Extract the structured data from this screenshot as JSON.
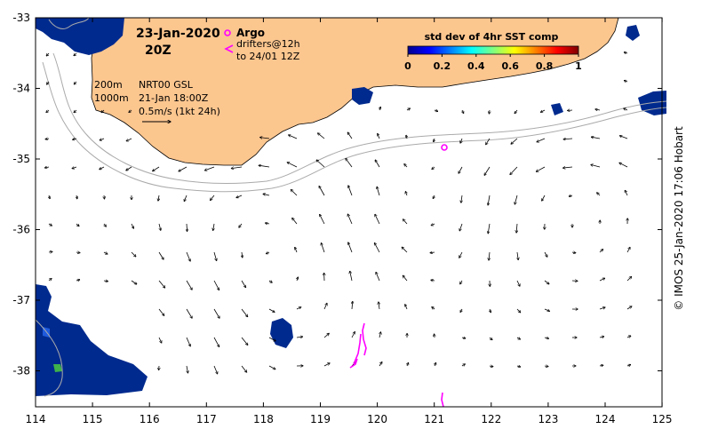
{
  "map": {
    "date": "23-Jan-2020",
    "time": "20Z",
    "depth_labels": [
      "200m",
      "1000m"
    ],
    "product": "NRT00 GSL",
    "product_time": "21-Jan 18:00Z",
    "scale_text": "0.5m/s (1kt 24h)",
    "longitude_ticks": [
      "114",
      "115",
      "116",
      "117",
      "118",
      "119",
      "120",
      "121",
      "122",
      "123",
      "124",
      "125"
    ],
    "latitude_ticks": [
      "-33",
      "-34",
      "-35",
      "-36",
      "-37",
      "-38"
    ]
  },
  "legend": {
    "argo_label": "Argo",
    "drifter_label": "drifters@12h",
    "drifter_range": "to 24/01 12Z",
    "marker_color": "#ff00ff"
  },
  "colorbar": {
    "title": "std dev of 4hr SST comp",
    "ticks": [
      "0",
      "0.2",
      "0.4",
      "0.6",
      "0.8",
      "1"
    ]
  },
  "colors": {
    "land": "#fcc68f",
    "cloud": "#002a8e",
    "contour": "#aaaaaa"
  },
  "credit": "© IMOS 25-Jan-2020 17:06 Hobart"
}
